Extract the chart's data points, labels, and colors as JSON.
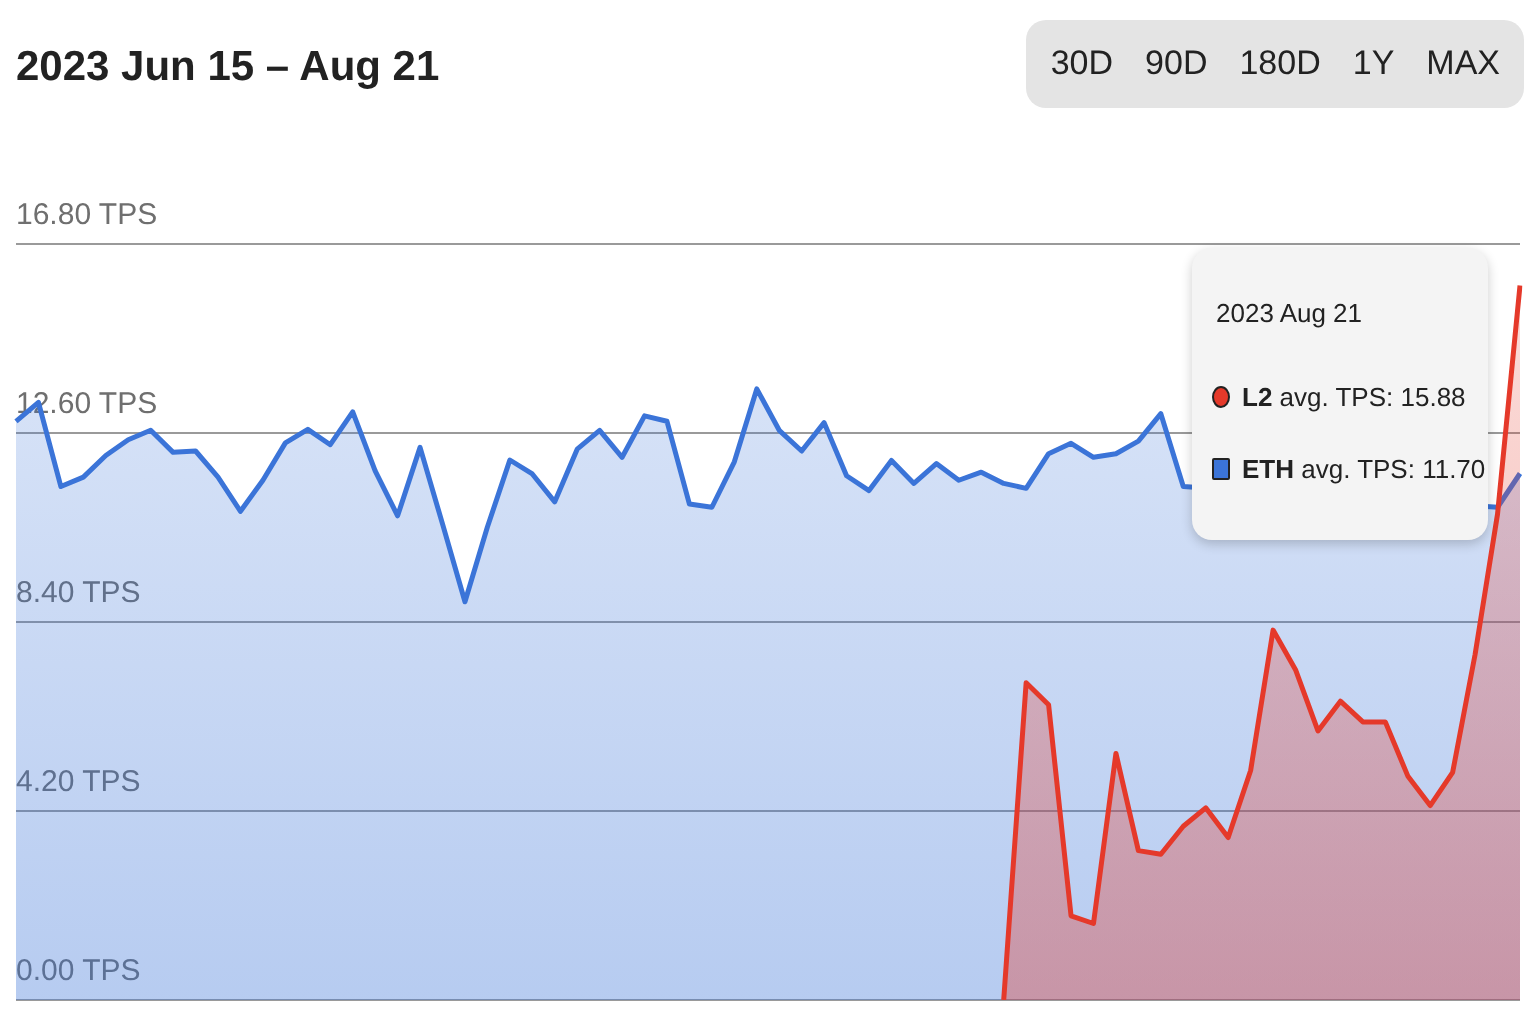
{
  "chart_data": {
    "type": "area",
    "title": "2023 Jun 15 – Aug 21",
    "categories": [
      null,
      null,
      null,
      null,
      null,
      null,
      null,
      null,
      null,
      null,
      null,
      null,
      null,
      null,
      null,
      null,
      null,
      null,
      null,
      null,
      null,
      null,
      null,
      null,
      null,
      null,
      null,
      null,
      null,
      null,
      null,
      null,
      null,
      null,
      null,
      null,
      null,
      null,
      null,
      null,
      null,
      null,
      null,
      null,
      null,
      null,
      null,
      null,
      null,
      null,
      null,
      null,
      null,
      null,
      null,
      null,
      null,
      null,
      null,
      null,
      null,
      null,
      null,
      null,
      null,
      null,
      null,
      null
    ],
    "series": [
      {
        "name": "L2",
        "color": "#e5392a",
        "values": [
          null,
          null,
          null,
          null,
          null,
          null,
          null,
          null,
          null,
          null,
          null,
          null,
          null,
          null,
          null,
          null,
          null,
          null,
          null,
          null,
          null,
          null,
          null,
          null,
          null,
          null,
          null,
          null,
          null,
          null,
          null,
          null,
          null,
          null,
          null,
          null,
          null,
          null,
          null,
          null,
          null,
          null,
          null,
          null,
          0,
          7.05,
          6.56,
          1.87,
          1.7,
          5.48,
          3.32,
          3.24,
          3.86,
          4.27,
          3.61,
          5.1,
          8.22,
          7.34,
          5.98,
          6.64,
          6.18,
          6.18,
          4.98,
          4.32,
          5.06,
          7.68,
          10.8,
          15.88
        ]
      },
      {
        "name": "ETH",
        "color": "#3b74d8",
        "values": [
          12.86,
          13.28,
          11.41,
          11.62,
          12.1,
          12.45,
          12.66,
          12.17,
          12.2,
          11.62,
          10.86,
          11.55,
          12.38,
          12.68,
          12.34,
          13.07,
          11.76,
          10.76,
          12.28,
          10.58,
          8.85,
          10.51,
          12.0,
          11.69,
          11.07,
          12.24,
          12.66,
          12.06,
          12.98,
          12.86,
          11.02,
          10.95,
          11.96,
          13.58,
          12.66,
          12.2,
          12.83,
          11.65,
          11.32,
          11.99,
          11.48,
          11.92,
          11.55,
          11.73,
          11.48,
          11.37,
          12.14,
          12.37,
          12.06,
          12.14,
          12.42,
          13.03,
          11.41,
          null,
          null,
          null,
          null,
          null,
          null,
          null,
          null,
          null,
          null,
          null,
          null,
          null,
          10.95,
          11.7
        ]
      }
    ],
    "ylim": [
      0,
      16.8
    ],
    "yticks": [
      {
        "value": 0,
        "label": "0.00 TPS"
      },
      {
        "value": 4.2,
        "label": "4.20 TPS"
      },
      {
        "value": 8.4,
        "label": "8.40 TPS"
      },
      {
        "value": 12.6,
        "label": "12.60 TPS"
      },
      {
        "value": 16.8,
        "label": "16.80 TPS"
      }
    ],
    "grid": "y",
    "legend": "top right",
    "marker": "none",
    "annotations": [
      "2023 Aug 21",
      "avg. TPS: 15.88",
      "avg. TPS: 11.70",
      "30D",
      "90D",
      "180D",
      "1Y",
      "MAX"
    ]
  }
}
